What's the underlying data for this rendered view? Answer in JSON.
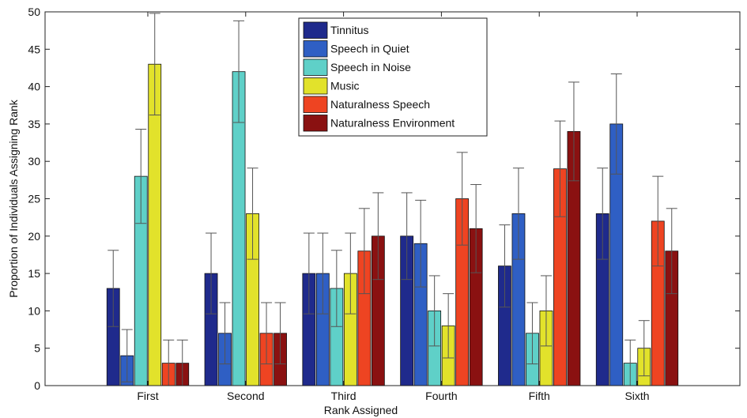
{
  "chart_data": {
    "type": "bar",
    "title": "",
    "xlabel": "Rank Assigned",
    "ylabel": "Proportion of Individuals Assigning Rank",
    "ylim": [
      0,
      50
    ],
    "yticks": [
      0,
      5,
      10,
      15,
      20,
      25,
      30,
      35,
      40,
      45,
      50
    ],
    "grid": false,
    "legend_position": "top-center",
    "categories": [
      "First",
      "Second",
      "Third",
      "Fourth",
      "Fifth",
      "Sixth"
    ],
    "series": [
      {
        "name": "Tinnitus",
        "color": "#1f2a8c",
        "values": [
          13,
          15,
          15,
          20,
          16,
          23
        ],
        "errors": [
          5.1,
          5.4,
          5.4,
          5.8,
          5.5,
          6.1
        ]
      },
      {
        "name": "Speech in Quiet",
        "color": "#2f5fc4",
        "values": [
          4,
          7,
          15,
          19,
          23,
          35
        ],
        "errors": [
          3.5,
          4.1,
          5.4,
          5.8,
          6.1,
          6.7
        ]
      },
      {
        "name": "Speech in Noise",
        "color": "#5fd0c8",
        "values": [
          28,
          42,
          13,
          10,
          7,
          3
        ],
        "errors": [
          6.3,
          6.8,
          5.1,
          4.7,
          4.1,
          3.1
        ]
      },
      {
        "name": "Music",
        "color": "#e2e22b",
        "values": [
          43,
          23,
          15,
          8,
          10,
          5
        ],
        "errors": [
          6.8,
          6.1,
          5.4,
          4.3,
          4.7,
          3.7
        ]
      },
      {
        "name": "Naturalness Speech",
        "color": "#ee4422",
        "values": [
          3,
          7,
          18,
          25,
          29,
          22
        ],
        "errors": [
          3.1,
          4.1,
          5.7,
          6.2,
          6.4,
          6.0
        ]
      },
      {
        "name": "Naturalness Environment",
        "color": "#8a1111",
        "values": [
          3,
          7,
          20,
          21,
          34,
          18
        ],
        "errors": [
          3.1,
          4.1,
          5.8,
          5.9,
          6.6,
          5.7
        ]
      }
    ]
  }
}
